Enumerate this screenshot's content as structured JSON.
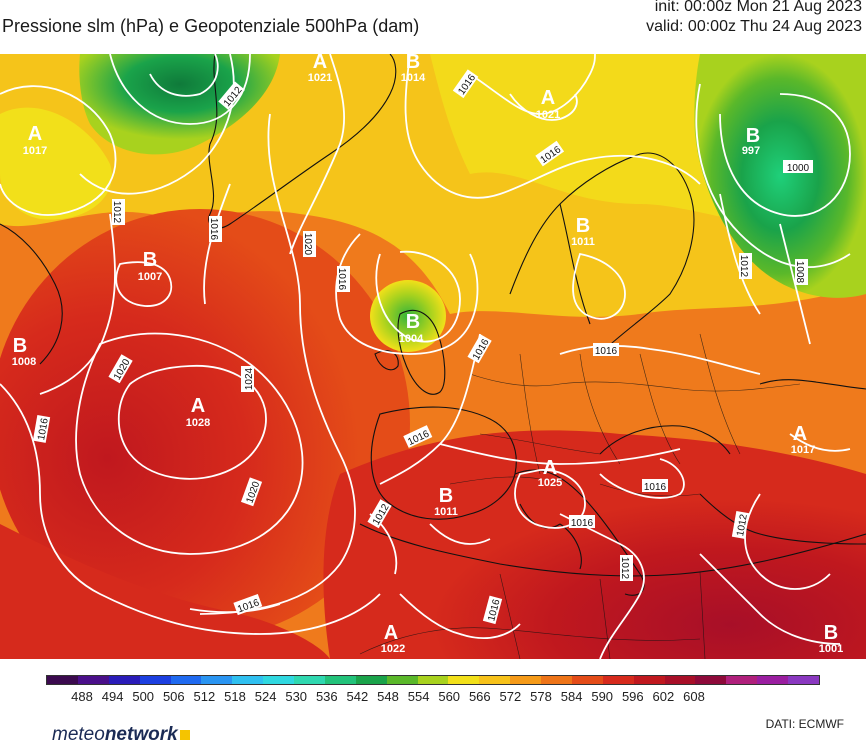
{
  "header": {
    "title": "Pressione slm (hPa) e Geopotenziale 500hPa (dam)",
    "init": "init: 00:00z Mon 21 Aug 2023",
    "valid": "valid: 00:00z Thu 24 Aug 2023"
  },
  "pressure_systems": [
    {
      "type": "A",
      "value": "1017"
    },
    {
      "type": "A",
      "value": "1021"
    },
    {
      "type": "B",
      "value": "1014"
    },
    {
      "type": "A",
      "value": "1021"
    },
    {
      "type": "B",
      "value": "997"
    },
    {
      "type": "B",
      "value": "1007"
    },
    {
      "type": "B",
      "value": "1011"
    },
    {
      "type": "B",
      "value": "1008"
    },
    {
      "type": "B",
      "value": "1004"
    },
    {
      "type": "A",
      "value": "1028"
    },
    {
      "type": "A",
      "value": "1025"
    },
    {
      "type": "B",
      "value": "1011"
    },
    {
      "type": "A",
      "value": "1017"
    },
    {
      "type": "A",
      "value": "1022"
    },
    {
      "type": "B",
      "value": "1001"
    }
  ],
  "isobar_labels": [
    "1012",
    "1016",
    "1012",
    "1016",
    "1020",
    "1016",
    "1016",
    "1016",
    "1020",
    "1024",
    "1020",
    "1016",
    "1016",
    "1016",
    "1016",
    "1012",
    "1012",
    "1016",
    "1012",
    "1016",
    "1000",
    "1012",
    "1008",
    "1016"
  ],
  "colorbar": {
    "ticks": [
      "488",
      "494",
      "500",
      "506",
      "512",
      "518",
      "524",
      "530",
      "536",
      "542",
      "548",
      "554",
      "560",
      "566",
      "572",
      "578",
      "584",
      "590",
      "596",
      "602",
      "608"
    ],
    "colors": [
      "#3b0a4f",
      "#4a0f8a",
      "#2a1bb8",
      "#1c3fe0",
      "#1f6af0",
      "#2a95f2",
      "#2fc0f0",
      "#2fd8e0",
      "#2fd8b0",
      "#22c27a",
      "#1aa34a",
      "#5ab82a",
      "#a8d21e",
      "#f2e01a",
      "#f7c21a",
      "#f59a18",
      "#ee7418",
      "#e44c18",
      "#d62a1c",
      "#c0181e",
      "#a80f28",
      "#8e0a3a",
      "#b0207c",
      "#9a1ea0",
      "#8a38c0"
    ]
  },
  "branding": {
    "brand_prefix": "meteo",
    "brand_suffix": "network",
    "source": "DATI:  ECMWF"
  },
  "palette": {
    "ocean_red": "#d83a1e",
    "orange": "#ef7a1c",
    "yellow": "#f5c41a",
    "green": "#35b43a",
    "dark_red": "#b81e2a",
    "isobar": "#ffffff",
    "coastline": "#111111"
  }
}
